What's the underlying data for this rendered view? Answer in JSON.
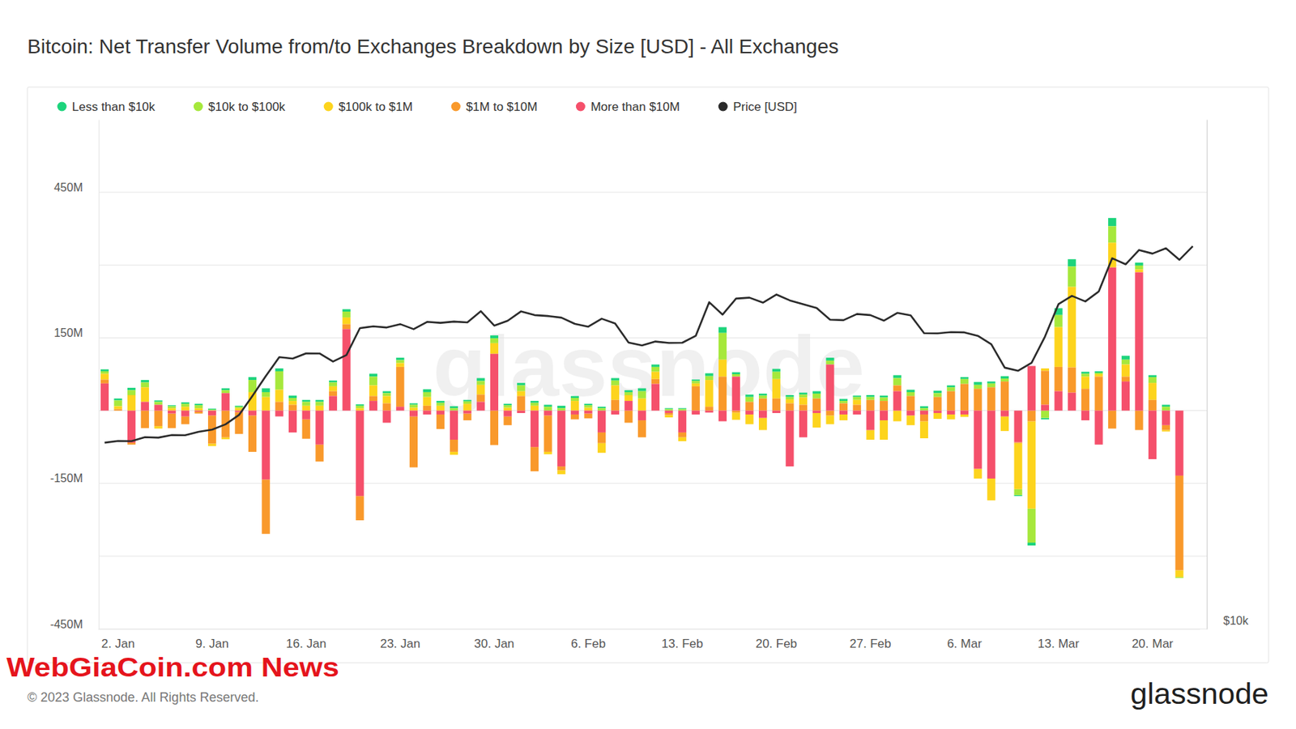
{
  "chart_data": {
    "type": "bar",
    "title": "Bitcoin: Net Transfer Volume from/to Exchanges Breakdown by Size [USD] - All Exchanges",
    "annotations": [
      "WebGiaCoin.com News",
      "© 2023 Glassnode. All Rights Reserved.",
      "glassnode",
      "glassnode"
    ],
    "stacked": true,
    "grid": true,
    "legend": "top",
    "log": "y2",
    "categories": [
      null,
      "2. Jan",
      null,
      null,
      null,
      null,
      null,
      null,
      "9. Jan",
      null,
      null,
      null,
      null,
      null,
      null,
      "16. Jan",
      null,
      null,
      null,
      null,
      null,
      null,
      "23. Jan",
      null,
      null,
      null,
      null,
      null,
      null,
      "30. Jan",
      null,
      null,
      null,
      null,
      null,
      null,
      "6. Feb",
      null,
      null,
      null,
      null,
      null,
      null,
      "13. Feb",
      null,
      null,
      null,
      null,
      null,
      null,
      "20. Feb",
      null,
      null,
      null,
      null,
      null,
      null,
      "27. Feb",
      null,
      null,
      null,
      null,
      null,
      null,
      "6. Mar",
      null,
      null,
      null,
      null,
      null,
      null,
      "13. Mar",
      null,
      null,
      null,
      null,
      null,
      null,
      "20. Mar",
      null,
      null,
      null
    ],
    "ylim": [
      -450,
      600
    ],
    "yticks": [
      {
        "value": -450,
        "label": "-450M"
      },
      {
        "value": -300,
        "label": null
      },
      {
        "value": -150,
        "label": "-150M"
      },
      {
        "value": 0,
        "label": null
      },
      {
        "value": 150,
        "label": "150M"
      },
      {
        "value": 300,
        "label": null
      },
      {
        "value": 450,
        "label": "450M"
      }
    ],
    "y2lim": [
      10000,
      40000
    ],
    "y2ticks": [
      {
        "value": 10000,
        "label": "$10k"
      }
    ],
    "series": [
      {
        "name": "Less than $10k",
        "type": "bar",
        "color": "#1dd47c",
        "values": [
          4,
          4,
          5,
          5,
          3,
          2,
          3,
          3,
          2,
          4,
          2,
          6,
          8,
          6,
          5,
          4,
          4,
          4,
          5,
          3,
          6,
          4,
          5,
          3,
          6,
          4,
          4,
          3,
          6,
          6,
          3,
          5,
          4,
          4,
          5,
          4,
          3,
          3,
          5,
          4,
          6,
          5,
          2,
          2,
          3,
          6,
          12,
          4,
          5,
          4,
          6,
          4,
          4,
          5,
          6,
          4,
          3,
          4,
          4,
          6,
          5,
          4,
          5,
          4,
          4,
          6,
          4,
          5,
          -2,
          -6,
          -3,
          14,
          15,
          4,
          3,
          17,
          8,
          6,
          4,
          4,
          0,
          null
        ]
      },
      {
        "name": "$10k to $100k",
        "type": "bar",
        "color": "#a6e83c",
        "values": [
          5,
          12,
          10,
          10,
          6,
          4,
          6,
          6,
          2,
          6,
          3,
          25,
          10,
          38,
          6,
          8,
          8,
          8,
          12,
          5,
          18,
          6,
          6,
          6,
          10,
          6,
          5,
          5,
          8,
          10,
          5,
          12,
          6,
          8,
          5,
          6,
          5,
          5,
          10,
          6,
          15,
          10,
          3,
          3,
          5,
          8,
          55,
          5,
          10,
          6,
          15,
          5,
          6,
          10,
          8,
          5,
          6,
          6,
          7,
          15,
          8,
          5,
          8,
          8,
          10,
          8,
          8,
          6,
          -12,
          -70,
          -15,
          25,
          42,
          6,
          3,
          34,
          10,
          8,
          12,
          8,
          -2,
          null
        ]
      },
      {
        "name": "$100k to $1M",
        "type": "bar",
        "color": "#fdd41d",
        "values": [
          12,
          6,
          32,
          30,
          -5,
          5,
          8,
          5,
          -5,
          -4,
          5,
          38,
          28,
          25,
          8,
          10,
          10,
          10,
          14,
          5,
          22,
          15,
          8,
          6,
          18,
          10,
          -6,
          14,
          20,
          22,
          6,
          10,
          10,
          -5,
          -8,
          20,
          6,
          -20,
          30,
          12,
          25,
          15,
          -5,
          -8,
          6,
          55,
          35,
          -15,
          -20,
          -25,
          40,
          8,
          15,
          -30,
          -18,
          -12,
          10,
          -20,
          -40,
          -22,
          -20,
          -35,
          -12,
          -10,
          -5,
          -20,
          -45,
          -30,
          -95,
          -180,
          5,
          82,
          166,
          25,
          5,
          51,
          25,
          6,
          35,
          -3,
          -14,
          null
        ]
      },
      {
        "name": "$1M to $10M",
        "type": "bar",
        "color": "#f9992b",
        "values": [
          8,
          3,
          -4,
          -36,
          -32,
          -30,
          -16,
          -4,
          -58,
          -55,
          -45,
          -75,
          -112,
          18,
          12,
          -40,
          -35,
          10,
          10,
          -50,
          10,
          15,
          82,
          -105,
          10,
          -30,
          -25,
          -14,
          15,
          -71,
          -18,
          30,
          -50,
          -75,
          -8,
          -10,
          -10,
          -22,
          22,
          -25,
          -35,
          10,
          -4,
          -10,
          50,
          8,
          70,
          -4,
          18,
          25,
          25,
          15,
          12,
          25,
          -10,
          15,
          12,
          22,
          20,
          12,
          30,
          -14,
          28,
          40,
          55,
          45,
          48,
          60,
          -2,
          -22,
          70,
          50,
          52,
          45,
          70,
          -37,
          10,
          -40,
          22,
          -10,
          -195,
          null
        ]
      },
      {
        "name": "More than $10M",
        "type": "bar",
        "color": "#f5506b",
        "values": [
          56,
          0,
          -66,
          18,
          12,
          -6,
          -12,
          -2,
          -10,
          36,
          -3,
          -10,
          -142,
          -12,
          -45,
          -18,
          -70,
          30,
          168,
          -176,
          20,
          -25,
          8,
          -12,
          -8,
          -8,
          -60,
          -6,
          18,
          117,
          -12,
          -5,
          -75,
          -10,
          -115,
          -8,
          -6,
          -45,
          -8,
          20,
          -20,
          55,
          -5,
          -45,
          -8,
          -4,
          -22,
          70,
          -8,
          -15,
          -5,
          -115,
          -55,
          -5,
          95,
          -8,
          -8,
          -40,
          -20,
          40,
          -10,
          -8,
          -5,
          -8,
          -8,
          -120,
          -140,
          -12,
          -65,
          92,
          12,
          40,
          37,
          -20,
          -70,
          295,
          60,
          285,
          -100,
          -30,
          -134,
          null
        ]
      },
      {
        "name": "Price [USD]",
        "type": "line",
        "axis": "y2",
        "color": "#2b2b2b",
        "values": [
          16600,
          16680,
          16670,
          16850,
          16830,
          16950,
          16940,
          17100,
          17200,
          17450,
          17900,
          18850,
          19900,
          20950,
          20870,
          21170,
          21160,
          20700,
          21070,
          22670,
          22780,
          22710,
          22920,
          22610,
          23060,
          23000,
          23080,
          23030,
          23740,
          22830,
          23130,
          23730,
          23490,
          23430,
          23330,
          22940,
          22760,
          23260,
          22960,
          21800,
          21630,
          21860,
          21780,
          21790,
          22200,
          24330,
          23520,
          24570,
          24630,
          24300,
          24840,
          24450,
          24190,
          23950,
          23200,
          23170,
          23560,
          23490,
          23140,
          23630,
          23470,
          22360,
          22350,
          22430,
          22410,
          22200,
          21700,
          20360,
          20190,
          20630,
          22160,
          24200,
          24750,
          24380,
          25050,
          27420,
          26970,
          28040,
          27770,
          28170,
          27300,
          28330
        ]
      }
    ]
  }
}
